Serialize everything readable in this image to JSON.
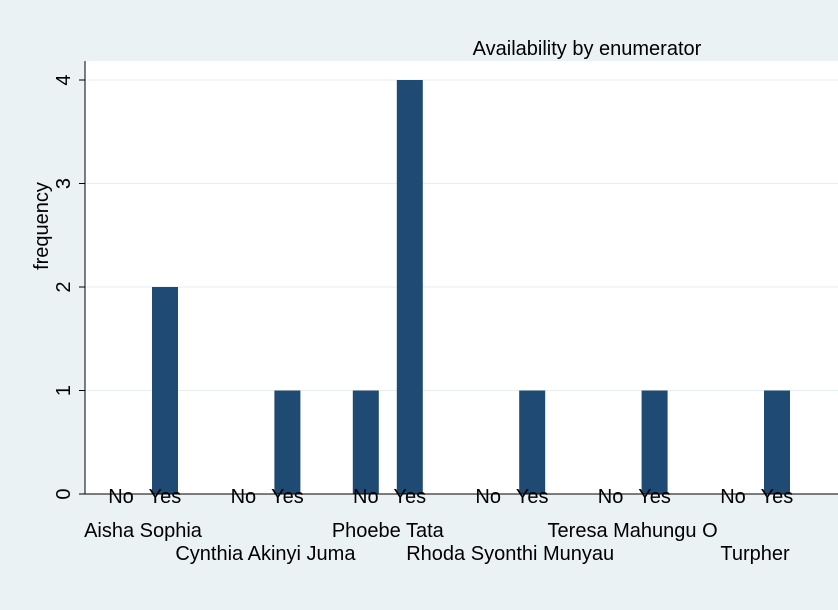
{
  "chart_data": {
    "type": "bar",
    "title": "Availability by enumerator",
    "ylabel": "frequency",
    "ylim": [
      0,
      4
    ],
    "yticks": [
      0,
      1,
      2,
      3,
      4
    ],
    "grid": true,
    "bar_color": "#1f4a73",
    "background_outer": "#eaf2f3",
    "background_plot": "#ffffff",
    "groups": [
      {
        "name": "Aisha Sophia",
        "categories": [
          "No",
          "Yes"
        ],
        "values": [
          0,
          2
        ]
      },
      {
        "name": "Cynthia Akinyi Juma",
        "categories": [
          "No",
          "Yes"
        ],
        "values": [
          0,
          1
        ]
      },
      {
        "name": "Phoebe Tata",
        "categories": [
          "No",
          "Yes"
        ],
        "values": [
          1,
          4
        ]
      },
      {
        "name": "Rhoda Syonthi Munyau",
        "categories": [
          "No",
          "Yes"
        ],
        "values": [
          0,
          1
        ]
      },
      {
        "name": "Teresa Mahungu O",
        "categories": [
          "No",
          "Yes"
        ],
        "values": [
          0,
          1
        ]
      },
      {
        "name": "Turpher",
        "categories": [
          "No",
          "Yes"
        ],
        "values": [
          0,
          1
        ]
      }
    ]
  }
}
